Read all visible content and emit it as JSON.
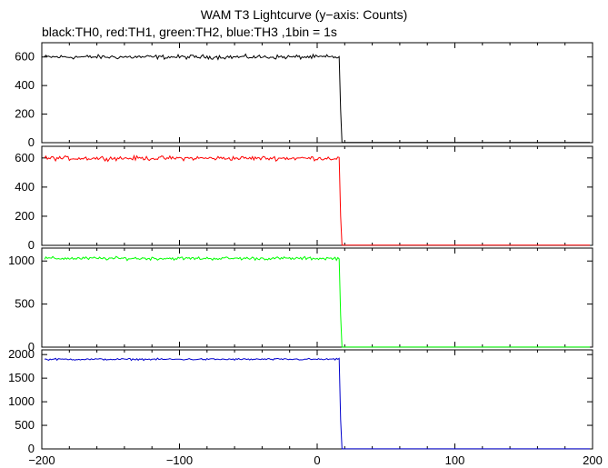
{
  "title": "WAM T3 Lightcurve (y−axis: Counts)",
  "subtitle": "black:TH0, red:TH1, green:TH2, blue:TH3 ,1bin = 1s",
  "chart_data": {
    "type": "line",
    "title": "WAM T3 Lightcurve (y−axis: Counts)",
    "subtitle": "black:TH0, red:TH1, green:TH2, blue:TH3 ,1bin = 1s",
    "xlim": [
      -200,
      200
    ],
    "x_ticks": [
      -200,
      -100,
      0,
      100,
      200
    ],
    "x_tick_labels": [
      "−200",
      "−100",
      "0",
      "100",
      "200"
    ],
    "step_time": 17,
    "panels": [
      {
        "name": "TH0",
        "color": "#000000",
        "ylim": [
          0,
          700
        ],
        "y_ticks": [
          0,
          200,
          400,
          600
        ],
        "y_tick_labels": [
          "0",
          "200",
          "400",
          "600"
        ],
        "level_before": 600,
        "noise": 22,
        "level_after": 1,
        "mid_value": 230
      },
      {
        "name": "TH1",
        "color": "#ff0000",
        "ylim": [
          0,
          680
        ],
        "y_ticks": [
          0,
          200,
          400,
          600
        ],
        "y_tick_labels": [
          "0",
          "200",
          "400",
          "600"
        ],
        "level_before": 598,
        "noise": 22,
        "level_after": 1,
        "mid_value": 200
      },
      {
        "name": "TH2",
        "color": "#00ff00",
        "ylim": [
          0,
          1150
        ],
        "y_ticks": [
          0,
          500,
          1000
        ],
        "y_tick_labels": [
          "0",
          "500",
          "1000"
        ],
        "level_before": 1030,
        "noise": 28,
        "level_after": 1,
        "mid_value": 370
      },
      {
        "name": "TH3",
        "color": "#0000cc",
        "ylim": [
          0,
          2100
        ],
        "y_ticks": [
          0,
          500,
          1000,
          1500,
          2000
        ],
        "y_tick_labels": [
          "0",
          "500",
          "1000",
          "1500",
          "2000"
        ],
        "level_before": 1900,
        "noise": 28,
        "level_after": 1,
        "mid_value": 620
      }
    ]
  }
}
